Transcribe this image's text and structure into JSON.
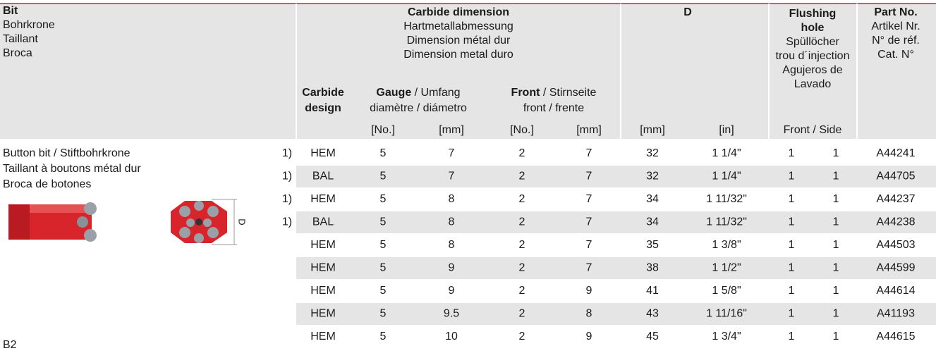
{
  "header": {
    "bit": [
      "Bit",
      "Bohrkrone",
      "Taillant",
      "Broca"
    ],
    "carbide_dimension": [
      "Carbide dimension",
      "Hartmetallabmessung",
      "Dimension métal dur",
      "Dimension metal duro"
    ],
    "d": "D",
    "flushing": {
      "title": [
        "Flushing",
        "hole"
      ],
      "sub": [
        "Spüllöcher",
        "trou d´injection",
        "Agujeros de",
        "Lavado"
      ]
    },
    "part_no": {
      "title": "Part No.",
      "sub": [
        "Artikel Nr.",
        "N° de réf.",
        "Cat. N°"
      ]
    },
    "carbide_design": [
      "Carbide",
      "design"
    ],
    "gauge": {
      "bold": "Gauge",
      "rest": " / Umfang",
      "line2": "diamètre / diámetro"
    },
    "front": {
      "bold": "Front",
      "rest": " / Stirnseite",
      "line2": "front / frente"
    },
    "units": [
      "[No.]",
      "[mm]",
      "[No.]",
      "[mm]",
      "[mm]",
      "[in]",
      "Front / Side"
    ]
  },
  "description": [
    "Button bit / Stiftbohrkrone",
    "Taillant à boutons métal dur",
    "Broca de botones"
  ],
  "image_label": "D",
  "model": "B2",
  "rows": [
    [
      "1)",
      "HEM",
      5,
      7,
      2,
      7,
      32,
      "1 1/4\"",
      1,
      1,
      "A44241"
    ],
    [
      "1)",
      "BAL",
      5,
      7,
      2,
      7,
      32,
      "1 1/4\"",
      1,
      1,
      "A44705"
    ],
    [
      "1)",
      "HEM",
      5,
      8,
      2,
      7,
      34,
      "1 11/32\"",
      1,
      1,
      "A44237"
    ],
    [
      "1)",
      "BAL",
      5,
      8,
      2,
      7,
      34,
      "1 11/32\"",
      1,
      1,
      "A44238"
    ],
    [
      null,
      "HEM",
      5,
      8,
      2,
      7,
      35,
      "1 3/8\"",
      1,
      1,
      "A44503"
    ],
    [
      null,
      "HEM",
      5,
      9,
      2,
      7,
      38,
      "1 1/2\"",
      1,
      1,
      "A44599"
    ],
    [
      null,
      "HEM",
      5,
      9,
      2,
      9,
      41,
      "1 5/8\"",
      1,
      1,
      "A44614"
    ],
    [
      null,
      "HEM",
      5,
      9.5,
      2,
      8,
      43,
      "1 11/16\"",
      1,
      1,
      "A41193"
    ],
    [
      null,
      "HEM",
      5,
      10,
      2,
      9,
      45,
      "1 3/4\"",
      1,
      1,
      "A44615"
    ]
  ]
}
